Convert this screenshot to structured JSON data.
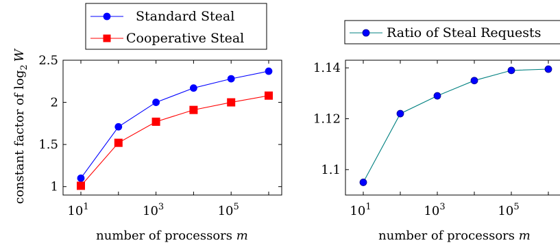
{
  "chart_data": [
    {
      "type": "line",
      "xscale": "log10",
      "x": [
        10,
        100,
        1000,
        10000,
        100000,
        1000000
      ],
      "x_ticks": [
        {
          "value": 10,
          "base": "10",
          "exp": "1"
        },
        {
          "value": 1000,
          "base": "10",
          "exp": "3"
        },
        {
          "value": 100000,
          "base": "10",
          "exp": "5"
        }
      ],
      "xlabel_text": "number of processors ",
      "xlabel_var": "m",
      "ylabel_text": "constant factor of log",
      "ylabel_sub": "2",
      "ylabel_var": "W",
      "ylim": [
        0.9,
        2.5
      ],
      "y_ticks": [
        "1",
        "1.5",
        "2",
        "2.5"
      ],
      "legend_placement": "above",
      "series": [
        {
          "name": "Standard Steal",
          "color": "#0000ff",
          "marker": "circle",
          "values": [
            1.1,
            1.71,
            2.0,
            2.17,
            2.28,
            2.37
          ]
        },
        {
          "name": "Cooperative Steal",
          "color": "#ff0000",
          "marker": "square",
          "values": [
            1.01,
            1.52,
            1.77,
            1.91,
            2.0,
            2.08
          ]
        }
      ]
    },
    {
      "type": "line",
      "xscale": "log10",
      "x": [
        10,
        100,
        1000,
        10000,
        100000,
        1000000
      ],
      "x_ticks": [
        {
          "value": 10,
          "base": "10",
          "exp": "1"
        },
        {
          "value": 1000,
          "base": "10",
          "exp": "3"
        },
        {
          "value": 100000,
          "base": "10",
          "exp": "5"
        }
      ],
      "xlabel_text": "number of processors ",
      "xlabel_var": "m",
      "ylim": [
        1.09,
        1.143
      ],
      "y_ticks": [
        "1.1",
        "1.12",
        "1.14"
      ],
      "legend_placement": "above",
      "series": [
        {
          "name": "Ratio of Steal Requests",
          "color": "#008080",
          "marker_color": "#0000ff",
          "marker": "circle",
          "values": [
            1.095,
            1.122,
            1.129,
            1.135,
            1.139,
            1.1395
          ]
        }
      ]
    }
  ]
}
